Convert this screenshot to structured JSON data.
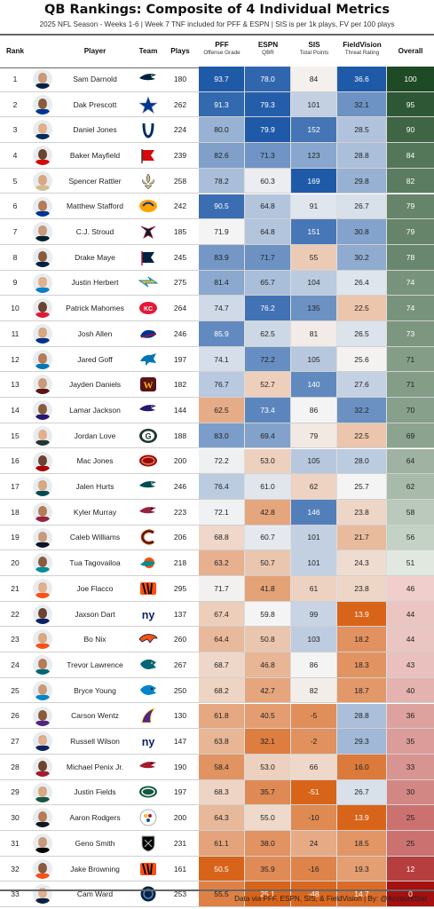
{
  "header": {
    "title": "QB Rankings: Composite of 4 Individual Metrics",
    "subtitle": "2025 NFL Season - Weeks 1-6 | Week 7 TNF included for PFF & ESPN | SIS is per 1k plays, FV per 100 plays",
    "col_rank": "Rank",
    "col_player": "Player",
    "col_team": "Team",
    "col_plays": "Plays",
    "col_pff": "PFF",
    "col_pff_sub": "Offense Grade",
    "col_espn": "ESPN",
    "col_espn_sub": "QBR",
    "col_sis": "SIS",
    "col_sis_sub": "Total Points",
    "col_fv": "FieldVision",
    "col_fv_sub": "Threat Rating",
    "col_overall": "Overall"
  },
  "footer": "Data via PFF, ESPN, SIS, & FieldVision | By: @AccountStat",
  "colors": {
    "blue_strong": "#1f5aa8",
    "neutral": "#f4f4f4",
    "orange_strong": "#d8641a",
    "overall_top": "#1e4a25",
    "overall_bottom": "#a51010"
  },
  "chart_data": {
    "type": "table",
    "columns": [
      "Rank",
      "Player",
      "Team",
      "Plays",
      "PFF Offense Grade",
      "ESPN QBR",
      "SIS Total Points",
      "FieldVision Threat Rating",
      "Overall"
    ],
    "rows": [
      {
        "rank": "1",
        "player": "Sam Darnold",
        "team": "SEA",
        "plays": "180",
        "pff": "93.7",
        "espn": "78.0",
        "sis": "84",
        "fv": "36.6",
        "overall": "100"
      },
      {
        "rank": "2",
        "player": "Dak Prescott",
        "team": "DAL",
        "plays": "262",
        "pff": "91.3",
        "espn": "79.3",
        "sis": "101",
        "fv": "32.1",
        "overall": "95"
      },
      {
        "rank": "3",
        "player": "Daniel Jones",
        "team": "IND",
        "plays": "224",
        "pff": "80.0",
        "espn": "79.9",
        "sis": "152",
        "fv": "28.5",
        "overall": "90"
      },
      {
        "rank": "4",
        "player": "Baker Mayfield",
        "team": "TB",
        "plays": "239",
        "pff": "82.6",
        "espn": "71.3",
        "sis": "123",
        "fv": "28.8",
        "overall": "84"
      },
      {
        "rank": "5",
        "player": "Spencer Rattler",
        "team": "NO",
        "plays": "258",
        "pff": "78.2",
        "espn": "60.3",
        "sis": "169",
        "fv": "29.8",
        "overall": "82"
      },
      {
        "rank": "6",
        "player": "Matthew Stafford",
        "team": "LAR",
        "plays": "242",
        "pff": "90.5",
        "espn": "64.8",
        "sis": "91",
        "fv": "26.7",
        "overall": "79"
      },
      {
        "rank": "7",
        "player": "C.J. Stroud",
        "team": "HOU",
        "plays": "185",
        "pff": "71.9",
        "espn": "64.8",
        "sis": "151",
        "fv": "30.8",
        "overall": "79"
      },
      {
        "rank": "8",
        "player": "Drake Maye",
        "team": "NE",
        "plays": "245",
        "pff": "83.9",
        "espn": "71.7",
        "sis": "55",
        "fv": "30.2",
        "overall": "78"
      },
      {
        "rank": "9",
        "player": "Justin Herbert",
        "team": "LAC",
        "plays": "275",
        "pff": "81.4",
        "espn": "65.7",
        "sis": "104",
        "fv": "26.4",
        "overall": "74"
      },
      {
        "rank": "10",
        "player": "Patrick Mahomes",
        "team": "KC",
        "plays": "264",
        "pff": "74.7",
        "espn": "76.2",
        "sis": "135",
        "fv": "22.5",
        "overall": "74"
      },
      {
        "rank": "11",
        "player": "Josh Allen",
        "team": "BUF",
        "plays": "246",
        "pff": "85.9",
        "espn": "62.5",
        "sis": "81",
        "fv": "26.5",
        "overall": "73"
      },
      {
        "rank": "12",
        "player": "Jared Goff",
        "team": "DET",
        "plays": "197",
        "pff": "74.1",
        "espn": "72.2",
        "sis": "105",
        "fv": "25.6",
        "overall": "71"
      },
      {
        "rank": "13",
        "player": "Jayden Daniels",
        "team": "WAS",
        "plays": "182",
        "pff": "76.7",
        "espn": "52.7",
        "sis": "140",
        "fv": "27.6",
        "overall": "71"
      },
      {
        "rank": "14",
        "player": "Lamar Jackson",
        "team": "BAL",
        "plays": "144",
        "pff": "62.5",
        "espn": "73.4",
        "sis": "86",
        "fv": "32.2",
        "overall": "70"
      },
      {
        "rank": "15",
        "player": "Jordan Love",
        "team": "GB",
        "plays": "188",
        "pff": "83.0",
        "espn": "69.4",
        "sis": "79",
        "fv": "22.5",
        "overall": "69"
      },
      {
        "rank": "16",
        "player": "Mac Jones",
        "team": "SF",
        "plays": "200",
        "pff": "72.2",
        "espn": "53.0",
        "sis": "105",
        "fv": "28.0",
        "overall": "64"
      },
      {
        "rank": "17",
        "player": "Jalen Hurts",
        "team": "PHI",
        "plays": "246",
        "pff": "76.4",
        "espn": "61.0",
        "sis": "62",
        "fv": "25.7",
        "overall": "62"
      },
      {
        "rank": "18",
        "player": "Kyler Murray",
        "team": "ARI",
        "plays": "223",
        "pff": "72.1",
        "espn": "42.8",
        "sis": "146",
        "fv": "23.8",
        "overall": "58"
      },
      {
        "rank": "19",
        "player": "Caleb Williams",
        "team": "CHI",
        "plays": "206",
        "pff": "68.8",
        "espn": "60.7",
        "sis": "101",
        "fv": "21.7",
        "overall": "56"
      },
      {
        "rank": "20",
        "player": "Tua Tagovailoa",
        "team": "MIA",
        "plays": "218",
        "pff": "63.2",
        "espn": "50.7",
        "sis": "101",
        "fv": "24.3",
        "overall": "51"
      },
      {
        "rank": "21",
        "player": "Joe Flacco",
        "team": "CIN",
        "plays": "295",
        "pff": "71.7",
        "espn": "41.8",
        "sis": "61",
        "fv": "23.8",
        "overall": "46"
      },
      {
        "rank": "22",
        "player": "Jaxson Dart",
        "team": "NYG",
        "plays": "137",
        "pff": "67.4",
        "espn": "59.8",
        "sis": "99",
        "fv": "13.9",
        "overall": "44"
      },
      {
        "rank": "23",
        "player": "Bo Nix",
        "team": "DEN",
        "plays": "260",
        "pff": "64.4",
        "espn": "50.8",
        "sis": "103",
        "fv": "18.2",
        "overall": "44"
      },
      {
        "rank": "24",
        "player": "Trevor Lawrence",
        "team": "JAX",
        "plays": "267",
        "pff": "68.7",
        "espn": "46.8",
        "sis": "86",
        "fv": "18.3",
        "overall": "43"
      },
      {
        "rank": "25",
        "player": "Bryce Young",
        "team": "CAR",
        "plays": "250",
        "pff": "68.2",
        "espn": "42.7",
        "sis": "82",
        "fv": "18.7",
        "overall": "40"
      },
      {
        "rank": "26",
        "player": "Carson Wentz",
        "team": "MIN",
        "plays": "130",
        "pff": "61.8",
        "espn": "40.5",
        "sis": "-5",
        "fv": "28.8",
        "overall": "36"
      },
      {
        "rank": "27",
        "player": "Russell Wilson",
        "team": "NYG",
        "plays": "147",
        "pff": "63.8",
        "espn": "32.1",
        "sis": "-2",
        "fv": "29.3",
        "overall": "35"
      },
      {
        "rank": "28",
        "player": "Michael Penix Jr.",
        "team": "ATL",
        "plays": "190",
        "pff": "58.4",
        "espn": "53.0",
        "sis": "66",
        "fv": "16.0",
        "overall": "33"
      },
      {
        "rank": "29",
        "player": "Justin Fields",
        "team": "NYJ",
        "plays": "197",
        "pff": "68.3",
        "espn": "35.7",
        "sis": "-51",
        "fv": "26.7",
        "overall": "30"
      },
      {
        "rank": "30",
        "player": "Aaron Rodgers",
        "team": "PIT",
        "plays": "200",
        "pff": "64.3",
        "espn": "55.0",
        "sis": "-10",
        "fv": "13.9",
        "overall": "25"
      },
      {
        "rank": "31",
        "player": "Geno Smith",
        "team": "LV",
        "plays": "231",
        "pff": "61.1",
        "espn": "38.0",
        "sis": "24",
        "fv": "18.5",
        "overall": "25"
      },
      {
        "rank": "32",
        "player": "Jake Browning",
        "team": "CIN",
        "plays": "161",
        "pff": "50.5",
        "espn": "35.9",
        "sis": "-16",
        "fv": "19.3",
        "overall": "12"
      },
      {
        "rank": "33",
        "player": "Cam Ward",
        "team": "TEN",
        "plays": "253",
        "pff": "55.5",
        "espn": "25.1",
        "sis": "-48",
        "fv": "14.7",
        "overall": "0"
      }
    ]
  }
}
